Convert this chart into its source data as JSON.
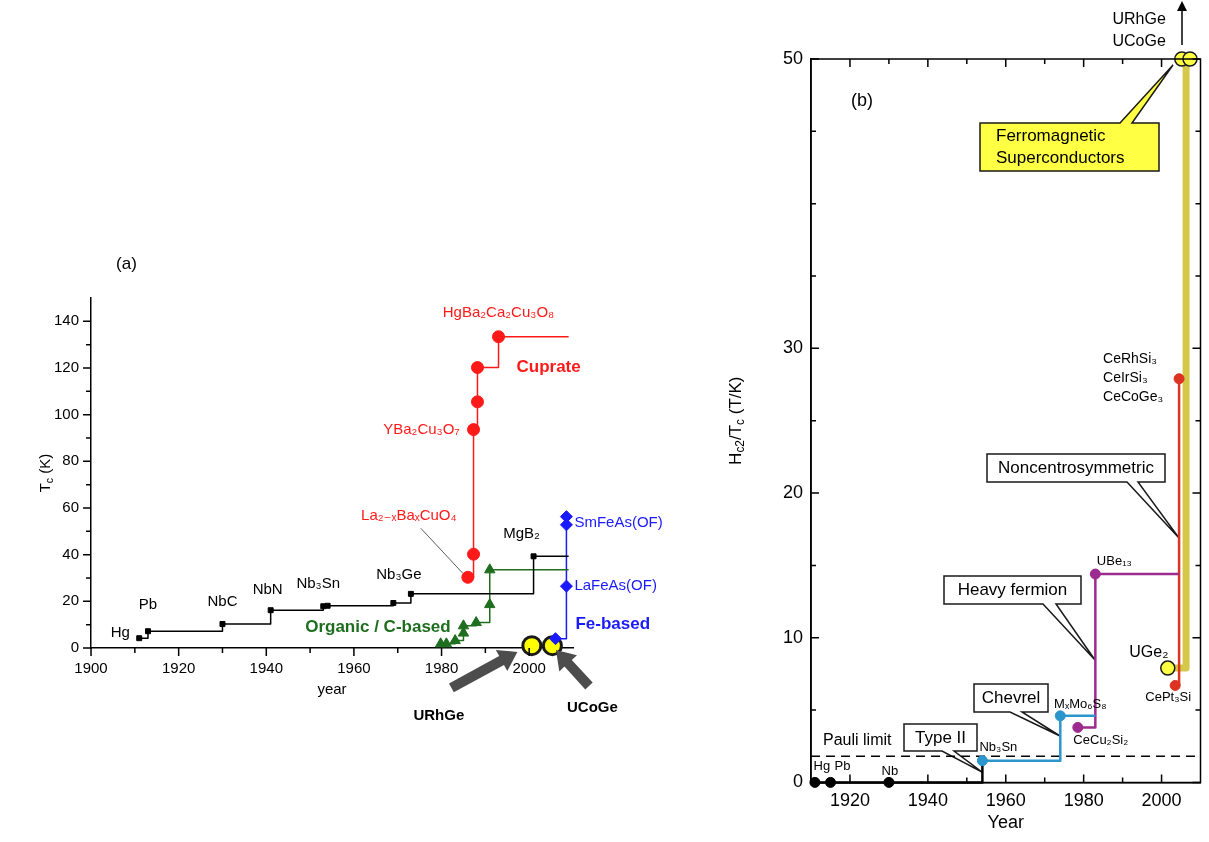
{
  "chart_data": [
    {
      "type": "step",
      "title": "(a)",
      "xlabel": "year",
      "ylabel": "T$_{c}$ (K)",
      "xlim": [
        1900,
        2010
      ],
      "xticks": [
        1900,
        {
          "value": 1910,
          "label": null
        },
        1920,
        {
          "value": 1930,
          "label": null
        },
        1940,
        {
          "value": 1950,
          "label": null
        },
        1960,
        {
          "value": 1970,
          "label": null
        },
        1980,
        {
          "value": 1990,
          "label": null
        },
        2000
      ],
      "ylim": [
        0,
        150
      ],
      "yticks": [
        0,
        {
          "value": 10,
          "label": null
        },
        20,
        {
          "value": 30,
          "label": null
        },
        40,
        {
          "value": 50,
          "label": null
        },
        60,
        {
          "value": 70,
          "label": null
        },
        80,
        {
          "value": 90,
          "label": null
        },
        100,
        {
          "value": 110,
          "label": null
        },
        120,
        {
          "value": 130,
          "label": null
        },
        140
      ],
      "series": [
        {
          "marker": "none",
          "color": "#000000",
          "x": [
            1911,
            1913,
            1930,
            1941,
            1953,
            1954,
            1969,
            1973,
            2001,
            2009
          ],
          "values": [
            4.2,
            7.2,
            10.3,
            16.2,
            17.9,
            18.1,
            19.3,
            23.2,
            39.3,
            39.3
          ]
        },
        {
          "marker": "none",
          "name": "Cuprate",
          "color": "#ff1a1a",
          "x": [
            1986,
            1987.3,
            1987.3,
            1988.2,
            1988.2,
            1993,
            2009
          ],
          "values": [
            30.3,
            40.2,
            93.6,
            105.5,
            120.2,
            133.4,
            133.4
          ]
        },
        {
          "marker": "none",
          "name": "Organic / C-based",
          "color": "#1f6e1f",
          "x": [
            1979.8,
            1981.1,
            1983.1,
            1985,
            1985,
            1987.9,
            1991,
            1991,
            2009
          ],
          "values": [
            1.8,
            1.8,
            3.2,
            6.4,
            9.5,
            10.9,
            18.6,
            33.5,
            33.5
          ]
        },
        {
          "marker": "none",
          "name": "Fe-based",
          "color": "#1a1aff",
          "x": [
            2006,
            2008.5,
            2008.5,
            2008.5
          ],
          "values": [
            4,
            26.5,
            52.8,
            56.3
          ]
        },
        {
          "type": "scatter",
          "marker": "square",
          "color": "#000000",
          "x": [
            1911,
            1913,
            1930,
            1941,
            1953,
            1954,
            1969,
            1973,
            2001
          ],
          "values": [
            4.2,
            7.2,
            10.3,
            16.2,
            17.9,
            18.1,
            19.3,
            23.2,
            39.3
          ]
        },
        {
          "type": "scatter",
          "marker": "circle",
          "color": "#ff1a1a",
          "x": [
            1986,
            1987.3,
            1987.3,
            1988.2,
            1988.2,
            1993
          ],
          "values": [
            30.3,
            40.2,
            93.6,
            105.5,
            120.2,
            133.4
          ]
        },
        {
          "type": "scatter",
          "marker": "triangle",
          "color": "#1f6e1f",
          "x": [
            1979.8,
            1981.1,
            1983.1,
            1985,
            1985,
            1987.9,
            1991,
            1991
          ],
          "values": [
            1.8,
            1.8,
            3.2,
            6.4,
            9.5,
            10.9,
            18.6,
            33.5
          ]
        },
        {
          "type": "scatter",
          "marker": "diamond",
          "color": "#1a1aff",
          "x": [
            2006,
            2008.5,
            2008.5,
            2008.5
          ],
          "values": [
            4,
            26.5,
            52.8,
            56.3
          ]
        },
        {
          "type": "scatter",
          "marker": "circle",
          "color": "#ffff00",
          "x": [
            2000.6,
            2005.3
          ],
          "values": [
            1,
            1
          ]
        }
      ],
      "annotations": [
        {
          "text": "Hg",
          "x": 1911,
          "y": 4.2
        },
        {
          "text": "Pb",
          "x": 1913,
          "y": 7.2
        },
        {
          "text": "NbC",
          "x": 1930,
          "y": 10.3
        },
        {
          "text": "NbN",
          "x": 1941,
          "y": 16.2
        },
        {
          "text": "Nb₃Sn",
          "x": 1953,
          "y": 17.9
        },
        {
          "text": "Nb₃Ge",
          "x": 1973,
          "y": 23.2
        },
        {
          "text": "MgB₂",
          "x": 2001,
          "y": 39.3
        },
        {
          "text": "HgBa₂Ca₂Cu₃O₈",
          "x": 1993,
          "y": 133.4
        },
        {
          "text": "YBa₂Cu₃O₇",
          "x": 1987.3,
          "y": 93.6
        },
        {
          "text": "La₂₋ₓBaₓCuO₄",
          "x": 1986,
          "y": 30.3
        },
        {
          "text": "SmFeAs(OF)",
          "x": 2008.5,
          "y": 52.8
        },
        {
          "text": "LaFeAs(OF)",
          "x": 2008.5,
          "y": 26.5
        },
        "URhGe",
        "UCoGe"
      ]
    },
    {
      "type": "step",
      "title": "(b)",
      "xlabel": "Year",
      "ylabel": "H$_{c2}$/T$_{c}$ (T/K)",
      "xlim": [
        1910,
        2010
      ],
      "xticks": [
        1920,
        {
          "value": 1930,
          "label": null
        },
        1940,
        {
          "value": 1950,
          "label": null
        },
        1960,
        {
          "value": 1970,
          "label": null
        },
        1980,
        {
          "value": 1990,
          "label": null
        },
        2000
      ],
      "ylim": [
        0,
        50
      ],
      "yticks": [
        0,
        {
          "value": 5,
          "label": null
        },
        10,
        {
          "value": 15,
          "label": null
        },
        20,
        {
          "value": 25,
          "label": null
        },
        30,
        {
          "value": 35,
          "label": null
        },
        {
          "value": 40,
          "label": null
        },
        {
          "value": 45,
          "label": null
        },
        50
      ],
      "ref_lines": [
        {
          "axis": "y",
          "value": 1.8,
          "label": "Pauli limit",
          "color": "#000000",
          "line_style": "dashed"
        }
      ],
      "series": [
        {
          "marker": "none",
          "color": "#000000",
          "x": [
            1911,
            1954
          ],
          "values": [
            0,
            1.5
          ]
        },
        {
          "marker": "none",
          "color": "#2b96cc",
          "x": [
            1954,
            1974,
            1983
          ],
          "values": [
            1.5,
            4.6,
            4.6
          ]
        },
        {
          "marker": "none",
          "color": "#9c2a8f",
          "x": [
            1978.5,
            1983,
            2004.5
          ],
          "values": [
            3.8,
            14.4,
            14.4
          ]
        },
        {
          "marker": "none",
          "color": "#dd3322",
          "x": [
            2003.5,
            2004.5
          ],
          "values": [
            6.7,
            27.9
          ]
        },
        {
          "marker": "none",
          "color": "#d4c84a",
          "x": [
            2001.6,
            2006.3
          ],
          "values": [
            7.9,
            50
          ]
        },
        {
          "type": "scatter",
          "marker": "circle",
          "color": "#000000",
          "x": [
            1911,
            1915,
            1930
          ],
          "values": [
            0,
            0,
            0
          ]
        },
        {
          "type": "scatter",
          "marker": "circle",
          "color": "#2b96cc",
          "x": [
            1954,
            1974
          ],
          "values": [
            1.5,
            4.6
          ]
        },
        {
          "type": "scatter",
          "marker": "circle",
          "color": "#9c2a8f",
          "x": [
            1978.5,
            1983
          ],
          "values": [
            3.8,
            14.4
          ]
        },
        {
          "type": "scatter",
          "marker": "circle",
          "color": "#dd3322",
          "x": [
            2003.5,
            2004.5
          ],
          "values": [
            6.7,
            27.9
          ]
        },
        {
          "type": "scatter",
          "marker": "circle",
          "color": "#ffff44",
          "x": [
            2001.6,
            2005.2,
            2007.3
          ],
          "values": [
            7.9,
            50,
            50
          ]
        }
      ],
      "annotations": [
        {
          "text": "Hg",
          "x": 1911,
          "y": 0
        },
        {
          "text": "Pb",
          "x": 1915,
          "y": 0
        },
        {
          "text": "Nb",
          "x": 1930,
          "y": 0
        },
        {
          "text": "Nb₃Sn",
          "x": 1954,
          "y": 1.5
        },
        {
          "text": "MₓMo₆S₈",
          "x": 1974,
          "y": 4.6
        },
        {
          "text": "CeCu₂Si₂",
          "x": 1978.5,
          "y": 3.8
        },
        {
          "text": "UBe₁₃",
          "x": 1983,
          "y": 14.4
        },
        {
          "text": "UGe₂",
          "x": 2001.6,
          "y": 7.9
        },
        {
          "text": "CePt₃Si",
          "x": 2003.5,
          "y": 6.7
        },
        {
          "text": "CeRhSi₃\nCeIrSi₃\nCeCoGe₃",
          "x": 2004.5,
          "y": 27.9
        },
        {
          "text": "URhGe\nUCoGe",
          "x": 2005.2,
          "y": 50
        },
        {
          "text": "Type II",
          "x": 1954,
          "y": 0.7
        },
        {
          "text": "Chevrel",
          "x": 1974,
          "y": 3.2
        },
        "Heavy fermion",
        "Noncentrosymmetric",
        "Ferromagnetic\nSuperconductors"
      ]
    }
  ]
}
